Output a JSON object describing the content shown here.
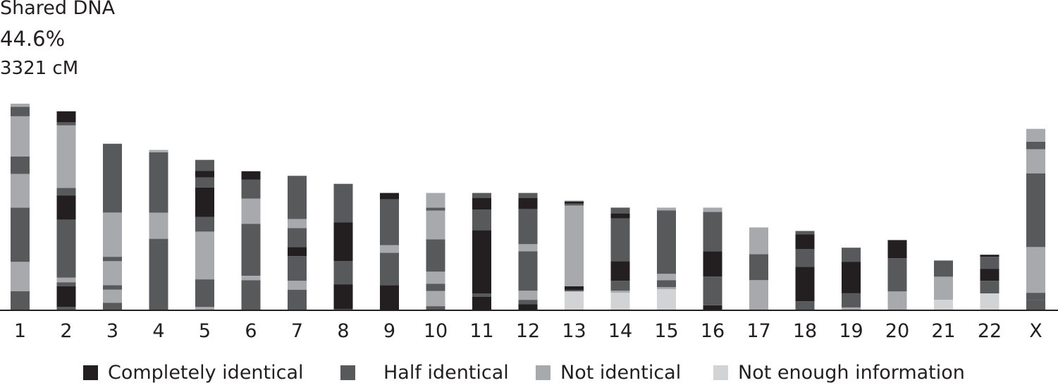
{
  "header": {
    "label": "Shared DNA",
    "percent": "44.6%",
    "cm": "3321 cM"
  },
  "colors": {
    "completely_identical": "#231f20",
    "half_identical": "#58595b",
    "not_identical": "#a7a9ac",
    "not_enough_information": "#d1d3d4",
    "axis": "#231f20"
  },
  "legend": [
    {
      "label": "Completely identical",
      "key": "completely_identical"
    },
    {
      "label": "Half identical",
      "key": "half_identical"
    },
    {
      "label": "Not identical",
      "key": "not_identical"
    },
    {
      "label": "Not enough information",
      "key": "not_enough_information"
    }
  ],
  "chart_data": {
    "type": "bar",
    "stacked": true,
    "categories": [
      "1",
      "2",
      "3",
      "4",
      "5",
      "6",
      "7",
      "8",
      "9",
      "10",
      "11",
      "12",
      "13",
      "14",
      "15",
      "16",
      "17",
      "18",
      "19",
      "20",
      "21",
      "22",
      "X"
    ],
    "y_unit": "relative chromosome length (0 = baseline, 100 = top of chromosome 1)",
    "ylim": [
      0,
      100
    ],
    "segments": [
      [
        [
          "H",
          0,
          9.3
        ],
        [
          "N",
          9.3,
          23.5
        ],
        [
          "H",
          23.5,
          49.7
        ],
        [
          "N",
          49.7,
          66
        ],
        [
          "H",
          66,
          74.4
        ],
        [
          "N",
          74.4,
          93.9
        ],
        [
          "H",
          93.9,
          98.5
        ],
        [
          "N",
          98.5,
          100
        ]
      ],
      [
        [
          "H",
          0,
          1.7
        ],
        [
          "C",
          1.7,
          11.7
        ],
        [
          "H",
          11.7,
          13.6
        ],
        [
          "N",
          13.6,
          15.8
        ],
        [
          "H",
          15.8,
          43.9
        ],
        [
          "C",
          43.9,
          55.6
        ],
        [
          "H",
          55.6,
          59.2
        ],
        [
          "N",
          59.2,
          89.5
        ],
        [
          "H",
          89.5,
          90.9
        ],
        [
          "C",
          90.9,
          96.3
        ]
      ],
      [
        [
          "H",
          0,
          3.7
        ],
        [
          "N",
          3.7,
          10
        ],
        [
          "H",
          10,
          12.2
        ],
        [
          "N",
          12.2,
          23.8
        ],
        [
          "H",
          23.8,
          25.9
        ],
        [
          "N",
          25.9,
          47.3
        ],
        [
          "H",
          47.3,
          80.6
        ]
      ],
      [
        [
          "H",
          0,
          34.6
        ],
        [
          "N",
          34.6,
          47.3
        ],
        [
          "H",
          47.3,
          76.5
        ],
        [
          "N",
          76.5,
          77.6
        ]
      ],
      [
        [
          "N",
          0,
          1.7
        ],
        [
          "H",
          1.7,
          15
        ],
        [
          "N",
          15,
          38.1
        ],
        [
          "H",
          38.1,
          45.2
        ],
        [
          "C",
          45.2,
          59.5
        ],
        [
          "H",
          59.5,
          64.3
        ],
        [
          "C",
          64.3,
          67.4
        ],
        [
          "H",
          67.4,
          72.8
        ]
      ],
      [
        [
          "H",
          0,
          14.6
        ],
        [
          "N",
          14.6,
          16.7
        ],
        [
          "H",
          16.7,
          41.8
        ],
        [
          "N",
          41.8,
          54.1
        ],
        [
          "H",
          54.1,
          63.3
        ],
        [
          "C",
          63.3,
          67.3
        ]
      ],
      [
        [
          "H",
          0,
          10
        ],
        [
          "N",
          10,
          14.3
        ],
        [
          "H",
          14.3,
          26.2
        ],
        [
          "C",
          26.2,
          30.6
        ],
        [
          "H",
          30.6,
          39.8
        ],
        [
          "N",
          39.8,
          44.2
        ],
        [
          "H",
          44.2,
          65.1
        ]
      ],
      [
        [
          "H",
          0,
          0.7
        ],
        [
          "C",
          0.7,
          12.6
        ],
        [
          "H",
          12.6,
          23.8
        ],
        [
          "C",
          23.8,
          42.5
        ],
        [
          "H",
          42.5,
          61.2
        ]
      ],
      [
        [
          "C",
          0,
          12.2
        ],
        [
          "H",
          12.2,
          27.9
        ],
        [
          "N",
          27.9,
          31.6
        ],
        [
          "H",
          31.6,
          53.7
        ],
        [
          "C",
          53.7,
          56.8
        ]
      ],
      [
        [
          "H",
          0,
          2
        ],
        [
          "N",
          2,
          9.3
        ],
        [
          "H",
          9.3,
          12.9
        ],
        [
          "N",
          12.9,
          18.7
        ],
        [
          "H",
          18.7,
          34.3
        ],
        [
          "N",
          34.3,
          48.3
        ],
        [
          "H",
          48.3,
          49.7
        ],
        [
          "N",
          49.7,
          56.8
        ]
      ],
      [
        [
          "C",
          0,
          6.5
        ],
        [
          "H",
          6.5,
          8.2
        ],
        [
          "C",
          8.2,
          38.8
        ],
        [
          "H",
          38.8,
          48.7
        ],
        [
          "C",
          48.7,
          54.4
        ],
        [
          "H",
          54.4,
          56.8
        ]
      ],
      [
        [
          "C",
          0,
          3
        ],
        [
          "H",
          3,
          5.1
        ],
        [
          "N",
          5.1,
          9.5
        ],
        [
          "H",
          9.5,
          28.6
        ],
        [
          "N",
          28.6,
          32
        ],
        [
          "H",
          32,
          49
        ],
        [
          "C",
          49,
          54.4
        ],
        [
          "H",
          54.4,
          56.8
        ]
      ],
      [
        [
          "X",
          0,
          9.2
        ],
        [
          "H",
          9.2,
          9.9
        ],
        [
          "C",
          9.9,
          11.6
        ],
        [
          "N",
          11.6,
          50.7
        ],
        [
          "H",
          50.7,
          51.7
        ],
        [
          "C",
          51.7,
          52.7
        ],
        [
          "N",
          52.7,
          53.1
        ]
      ],
      [
        [
          "X",
          0,
          8.5
        ],
        [
          "N",
          8.5,
          9.5
        ],
        [
          "H",
          9.5,
          14.3
        ],
        [
          "C",
          14.3,
          23.8
        ],
        [
          "H",
          23.8,
          44.5
        ],
        [
          "C",
          44.5,
          46.9
        ],
        [
          "H",
          46.9,
          49.7
        ]
      ],
      [
        [
          "X",
          0,
          10.2
        ],
        [
          "N",
          10.2,
          11.2
        ],
        [
          "H",
          11.2,
          14.6
        ],
        [
          "N",
          14.6,
          17.7
        ],
        [
          "H",
          17.7,
          48.3
        ],
        [
          "N",
          48.3,
          49.7
        ]
      ],
      [
        [
          "C",
          0,
          2.4
        ],
        [
          "H",
          2.4,
          16.3
        ],
        [
          "C",
          16.3,
          28.6
        ],
        [
          "H",
          28.6,
          47.6
        ],
        [
          "N",
          47.6,
          49.7
        ]
      ],
      [
        [
          "N",
          0,
          14.6
        ],
        [
          "H",
          14.6,
          27.2
        ],
        [
          "N",
          27.2,
          40.1
        ]
      ],
      [
        [
          "H",
          0,
          4.4
        ],
        [
          "C",
          4.4,
          21.1
        ],
        [
          "H",
          21.1,
          29.6
        ],
        [
          "C",
          29.6,
          36.7
        ],
        [
          "H",
          36.7,
          38.4
        ]
      ],
      [
        [
          "N",
          0,
          1.4
        ],
        [
          "H",
          1.4,
          8.2
        ],
        [
          "C",
          8.2,
          23.5
        ],
        [
          "H",
          23.5,
          30.3
        ]
      ],
      [
        [
          "N",
          0,
          9.2
        ],
        [
          "H",
          9.2,
          25.2
        ],
        [
          "C",
          25.2,
          34
        ]
      ],
      [
        [
          "X",
          0,
          5.1
        ],
        [
          "N",
          5.1,
          16.3
        ],
        [
          "H",
          16.3,
          24.1
        ]
      ],
      [
        [
          "X",
          0,
          8.2
        ],
        [
          "H",
          8.2,
          14.3
        ],
        [
          "C",
          14.3,
          20.1
        ],
        [
          "H",
          20.1,
          25.9
        ],
        [
          "C",
          25.9,
          26.9
        ]
      ],
      [
        [
          "H",
          0,
          5.1
        ],
        [
          "H",
          5.1,
          8.5
        ],
        [
          "N",
          8.5,
          30.6
        ],
        [
          "H",
          30.6,
          66.3
        ],
        [
          "N",
          66.3,
          77.9
        ],
        [
          "H",
          77.9,
          81.6
        ],
        [
          "N",
          81.6,
          87.8
        ]
      ]
    ]
  }
}
